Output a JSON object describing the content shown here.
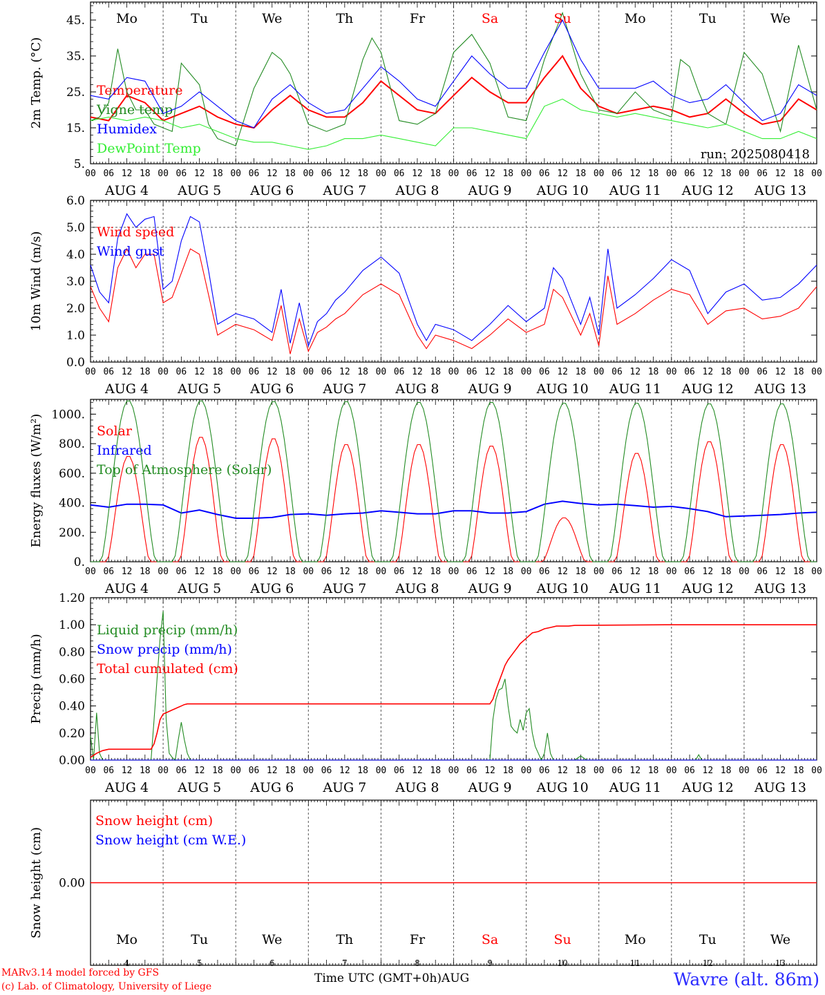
{
  "colors": {
    "red": "#ff0000",
    "dark_green": "#228b22",
    "blue": "#0000ff",
    "light_green": "#33ee33",
    "axis": "#000000",
    "grid": "#555555"
  },
  "header": {
    "day_names": [
      "Mo",
      "Tu",
      "We",
      "Th",
      "Fr",
      "Sa",
      "Su",
      "Mo",
      "Tu",
      "We"
    ],
    "weekend_indices": [
      5,
      6
    ]
  },
  "x_axis": {
    "hour_ticks": [
      "00",
      "06",
      "12",
      "18"
    ],
    "dates": [
      "AUG  4",
      "AUG  5",
      "AUG  6",
      "AUG  7",
      "AUG  8",
      "AUG  9",
      "AUG 10",
      "AUG 11",
      "AUG 12",
      "AUG 13"
    ],
    "bottom_day_numbers": [
      "4",
      "5",
      "6",
      "7",
      "8",
      "9",
      "10",
      "11",
      "12",
      "13"
    ],
    "final_tick": "00"
  },
  "footer": {
    "model_line": "MARv3.14 model forced by GFS",
    "credit_line": "(c) Lab. of Climatology, University of Liege",
    "x_title": "Time UTC (GMT+0h)AUG",
    "location": "Wavre (alt. 86m)"
  },
  "chart_data": [
    {
      "type": "line",
      "ylabel": "2m Temp. (°C)",
      "ylim": [
        5,
        50
      ],
      "yticks": [
        5,
        15,
        25,
        35,
        45
      ],
      "ytick_labels": [
        "5.",
        "15.",
        "25.",
        "35.",
        "45."
      ],
      "run_label": "run: 2025080418",
      "x_unit": "hours since 2025-08-04 00 UTC",
      "series": [
        {
          "name": "Temperature",
          "color": "#ff0000",
          "x": [
            0,
            6,
            12,
            18,
            24,
            30,
            36,
            42,
            48,
            54,
            60,
            66,
            72,
            78,
            84,
            90,
            96,
            102,
            108,
            114,
            120,
            126,
            132,
            138,
            144,
            150,
            156,
            162,
            168,
            174,
            180,
            186,
            192,
            198,
            204,
            210,
            216,
            222,
            228,
            234,
            240
          ],
          "y": [
            18,
            17,
            24,
            22,
            17,
            19,
            21,
            18,
            16,
            15,
            20,
            24,
            20,
            18,
            18,
            22,
            28,
            24,
            20,
            19,
            24,
            29,
            25,
            22,
            22,
            29,
            35,
            26,
            21,
            19,
            20,
            21,
            20,
            18,
            19,
            23,
            19,
            16,
            17,
            23,
            20
          ]
        },
        {
          "name": "Vigne temp",
          "color": "#228b22",
          "x": [
            0,
            3,
            6,
            9,
            12,
            15,
            18,
            21,
            24,
            27,
            30,
            33,
            36,
            39,
            42,
            48,
            54,
            60,
            63,
            66,
            72,
            78,
            84,
            90,
            93,
            96,
            102,
            108,
            114,
            120,
            126,
            132,
            138,
            144,
            150,
            156,
            162,
            168,
            174,
            180,
            186,
            192,
            195,
            198,
            201,
            204,
            210,
            216,
            222,
            228,
            234,
            240
          ],
          "y": [
            17,
            18,
            22,
            37,
            25,
            20,
            20,
            16,
            15,
            14,
            33,
            30,
            27,
            16,
            12,
            10,
            26,
            36,
            34,
            30,
            16,
            14,
            16,
            34,
            40,
            36,
            17,
            16,
            19,
            36,
            41,
            33,
            18,
            17,
            34,
            47,
            30,
            20,
            19,
            25,
            20,
            18,
            34,
            32,
            25,
            19,
            16,
            36,
            30,
            14,
            38,
            20
          ]
        },
        {
          "name": "Humidex",
          "color": "#0000ff",
          "x": [
            0,
            6,
            12,
            18,
            24,
            30,
            36,
            42,
            48,
            54,
            60,
            66,
            72,
            78,
            84,
            90,
            96,
            102,
            108,
            114,
            120,
            126,
            132,
            138,
            144,
            150,
            156,
            162,
            168,
            174,
            180,
            186,
            192,
            198,
            204,
            210,
            216,
            222,
            228,
            234,
            240
          ],
          "y": [
            24,
            23,
            29,
            28,
            19,
            21,
            25,
            21,
            17,
            15,
            23,
            27,
            22,
            19,
            20,
            26,
            32,
            28,
            23,
            21,
            28,
            35,
            30,
            26,
            26,
            36,
            45,
            34,
            26,
            26,
            26,
            28,
            24,
            22,
            23,
            27,
            22,
            17,
            19,
            27,
            24
          ]
        },
        {
          "name": "DewPoint Temp",
          "color": "#33ee33",
          "x": [
            0,
            6,
            12,
            18,
            24,
            30,
            36,
            42,
            48,
            54,
            60,
            66,
            72,
            78,
            84,
            90,
            96,
            102,
            108,
            114,
            120,
            126,
            132,
            138,
            144,
            150,
            156,
            162,
            168,
            174,
            180,
            186,
            192,
            198,
            204,
            210,
            216,
            222,
            228,
            234,
            240
          ],
          "y": [
            17,
            18,
            17,
            18,
            17,
            15,
            16,
            14,
            12,
            11,
            11,
            10,
            9,
            10,
            12,
            12,
            13,
            12,
            11,
            10,
            15,
            15,
            14,
            13,
            12,
            21,
            23,
            20,
            19,
            18,
            19,
            18,
            17,
            16,
            15,
            16,
            14,
            12,
            12,
            14,
            12
          ]
        }
      ]
    },
    {
      "type": "line",
      "ylabel": "10m Wind (m/s)",
      "ylim": [
        0,
        6
      ],
      "yticks": [
        0,
        1,
        2,
        3,
        4,
        5,
        6
      ],
      "ytick_labels": [
        "0.0",
        "1.0",
        "2.0",
        "3.0",
        "4.0",
        "5.0",
        "6.0"
      ],
      "hline": 5,
      "x_unit": "hours since 2025-08-04 00 UTC",
      "series": [
        {
          "name": "Wind speed",
          "color": "#ff0000",
          "x": [
            0,
            3,
            6,
            9,
            12,
            15,
            18,
            21,
            24,
            27,
            30,
            33,
            36,
            39,
            42,
            45,
            48,
            54,
            60,
            63,
            66,
            69,
            72,
            75,
            78,
            81,
            84,
            90,
            96,
            102,
            108,
            111,
            114,
            120,
            126,
            132,
            138,
            144,
            150,
            153,
            156,
            162,
            165,
            168,
            171,
            174,
            180,
            186,
            192,
            198,
            204,
            210,
            216,
            222,
            228,
            234,
            240
          ],
          "y": [
            2.8,
            2.0,
            1.5,
            3.5,
            4.2,
            3.5,
            4.0,
            4.0,
            2.2,
            2.4,
            3.3,
            4.2,
            4.0,
            2.5,
            1.0,
            1.2,
            1.4,
            1.2,
            0.8,
            2.1,
            0.3,
            1.6,
            0.4,
            1.1,
            1.3,
            1.6,
            1.8,
            2.5,
            2.9,
            2.5,
            1.0,
            0.5,
            1.0,
            0.8,
            0.5,
            1.0,
            1.6,
            1.1,
            1.4,
            2.7,
            2.4,
            1.0,
            1.8,
            0.6,
            3.2,
            1.4,
            1.8,
            2.3,
            2.7,
            2.5,
            1.4,
            1.9,
            2.0,
            1.6,
            1.7,
            2.0,
            2.8
          ]
        },
        {
          "name": "Wind gust",
          "color": "#0000ff",
          "x": [
            0,
            3,
            6,
            9,
            12,
            15,
            18,
            21,
            24,
            27,
            30,
            33,
            36,
            39,
            42,
            45,
            48,
            54,
            60,
            63,
            66,
            69,
            72,
            75,
            78,
            81,
            84,
            90,
            96,
            102,
            108,
            111,
            114,
            120,
            126,
            132,
            138,
            144,
            150,
            153,
            156,
            162,
            165,
            168,
            171,
            174,
            180,
            186,
            192,
            198,
            204,
            210,
            216,
            222,
            228,
            234,
            240
          ],
          "y": [
            3.6,
            2.6,
            2.2,
            4.6,
            5.5,
            5.0,
            5.3,
            5.4,
            2.7,
            3.0,
            4.5,
            5.4,
            5.2,
            3.4,
            1.4,
            1.6,
            1.8,
            1.6,
            1.1,
            2.7,
            0.7,
            2.2,
            0.6,
            1.5,
            1.8,
            2.3,
            2.6,
            3.4,
            3.9,
            3.3,
            1.4,
            0.8,
            1.4,
            1.2,
            0.8,
            1.4,
            2.1,
            1.5,
            2.0,
            3.5,
            3.1,
            1.4,
            2.4,
            1.0,
            4.2,
            2.0,
            2.5,
            3.1,
            3.8,
            3.4,
            1.8,
            2.6,
            2.9,
            2.3,
            2.4,
            2.9,
            3.6
          ]
        }
      ]
    },
    {
      "type": "line",
      "ylabel": "Energy fluxes (W/m²)",
      "ylim": [
        0,
        1100
      ],
      "yticks": [
        0,
        200,
        400,
        600,
        800,
        1000
      ],
      "ytick_labels": [
        "0.",
        "200.",
        "400.",
        "600.",
        "800.",
        "1000."
      ],
      "x_unit": "hours since 2025-08-04 00 UTC",
      "series": [
        {
          "name": "Solar",
          "color": "#ff0000",
          "shape": "daily_peak",
          "day_peaks": [
            720,
            850,
            840,
            800,
            800,
            790,
            300,
            740,
            820,
            800
          ]
        },
        {
          "name": "Infrared",
          "color": "#0000ff",
          "x": [
            0,
            6,
            12,
            18,
            24,
            30,
            36,
            42,
            48,
            54,
            60,
            66,
            72,
            78,
            84,
            90,
            96,
            102,
            108,
            114,
            120,
            126,
            132,
            138,
            144,
            150,
            156,
            162,
            168,
            174,
            180,
            186,
            192,
            198,
            204,
            210,
            216,
            222,
            228,
            234,
            240
          ],
          "y": [
            385,
            370,
            390,
            390,
            385,
            330,
            350,
            320,
            295,
            295,
            300,
            320,
            325,
            315,
            325,
            330,
            345,
            335,
            325,
            325,
            345,
            345,
            330,
            330,
            340,
            390,
            410,
            395,
            385,
            390,
            380,
            370,
            375,
            360,
            340,
            305,
            310,
            315,
            320,
            330,
            335
          ]
        },
        {
          "name": "Top of Atmosphere (Solar)",
          "color": "#228b22",
          "shape": "daily_peak",
          "day_peaks": [
            1095,
            1095,
            1090,
            1090,
            1085,
            1085,
            1080,
            1080,
            1075,
            1075
          ]
        }
      ]
    },
    {
      "type": "line",
      "ylabel": "Precip (mm/h)",
      "ylim": [
        0,
        1.2
      ],
      "yticks": [
        0,
        0.2,
        0.4,
        0.6,
        0.8,
        1.0,
        1.2
      ],
      "ytick_labels": [
        "0.00",
        "0.20",
        "0.40",
        "0.60",
        "0.80",
        "1.00",
        "1.20"
      ],
      "x_unit": "hours since 2025-08-04 00 UTC",
      "series": [
        {
          "name": "Liquid precip (mm/h)",
          "color": "#228b22",
          "x": [
            0,
            1,
            2,
            3,
            4,
            5,
            6,
            12,
            20,
            21,
            22,
            23,
            24,
            25,
            26,
            27,
            28,
            29,
            30,
            31,
            32,
            33,
            34,
            35,
            36,
            132,
            133,
            134,
            135,
            136,
            137,
            138,
            139,
            140,
            141,
            142,
            143,
            144,
            145,
            146,
            147,
            148,
            149,
            150,
            151,
            152,
            153,
            154,
            160,
            162,
            164,
            200,
            201,
            202,
            240
          ],
          "y": [
            0.18,
            0.0,
            0.35,
            0.05,
            0.0,
            0.0,
            0.0,
            0.0,
            0.0,
            0.3,
            0.6,
            0.9,
            1.1,
            0.3,
            0.05,
            0.02,
            0.0,
            0.15,
            0.28,
            0.15,
            0.05,
            0.0,
            0.0,
            0.0,
            0.0,
            0.0,
            0.3,
            0.45,
            0.52,
            0.53,
            0.6,
            0.4,
            0.25,
            0.22,
            0.2,
            0.3,
            0.22,
            0.35,
            0.38,
            0.2,
            0.1,
            0.05,
            0.0,
            0.05,
            0.2,
            0.05,
            0.0,
            0.0,
            0.0,
            0.03,
            0.0,
            0.0,
            0.04,
            0.0,
            0.0
          ]
        },
        {
          "name": "Snow precip (mm/h)",
          "color": "#0000ff",
          "x": [
            0,
            240
          ],
          "y": [
            0,
            0
          ]
        },
        {
          "name": "Total cumulated (cm)",
          "color": "#ff0000",
          "x": [
            0,
            2,
            4,
            6,
            20,
            21,
            22,
            23,
            24,
            25,
            26,
            27,
            28,
            29,
            30,
            31,
            32,
            36,
            132,
            133,
            134,
            135,
            136,
            137,
            138,
            139,
            140,
            141,
            142,
            143,
            144,
            145,
            146,
            148,
            150,
            152,
            154,
            156,
            158,
            160,
            190,
            240
          ],
          "y": [
            0.02,
            0.05,
            0.07,
            0.08,
            0.08,
            0.12,
            0.2,
            0.3,
            0.34,
            0.35,
            0.36,
            0.37,
            0.38,
            0.39,
            0.4,
            0.41,
            0.415,
            0.415,
            0.415,
            0.45,
            0.52,
            0.58,
            0.64,
            0.7,
            0.74,
            0.77,
            0.8,
            0.83,
            0.86,
            0.88,
            0.9,
            0.92,
            0.94,
            0.95,
            0.97,
            0.98,
            0.99,
            0.99,
            0.99,
            0.995,
            1.0,
            1.0
          ]
        }
      ]
    },
    {
      "type": "line",
      "ylabel": "Snow height (cm)",
      "ylim": [
        -1,
        1
      ],
      "yticks": [
        0
      ],
      "ytick_labels": [
        "0.00"
      ],
      "x_unit": "hours since 2025-08-04 00 UTC",
      "series": [
        {
          "name": "Snow height (cm)",
          "color": "#ff0000",
          "x": [
            0,
            240
          ],
          "y": [
            0,
            0
          ]
        },
        {
          "name": "Snow height (cm W.E.)",
          "color": "#0000ff",
          "x": [],
          "y": []
        }
      ]
    }
  ]
}
